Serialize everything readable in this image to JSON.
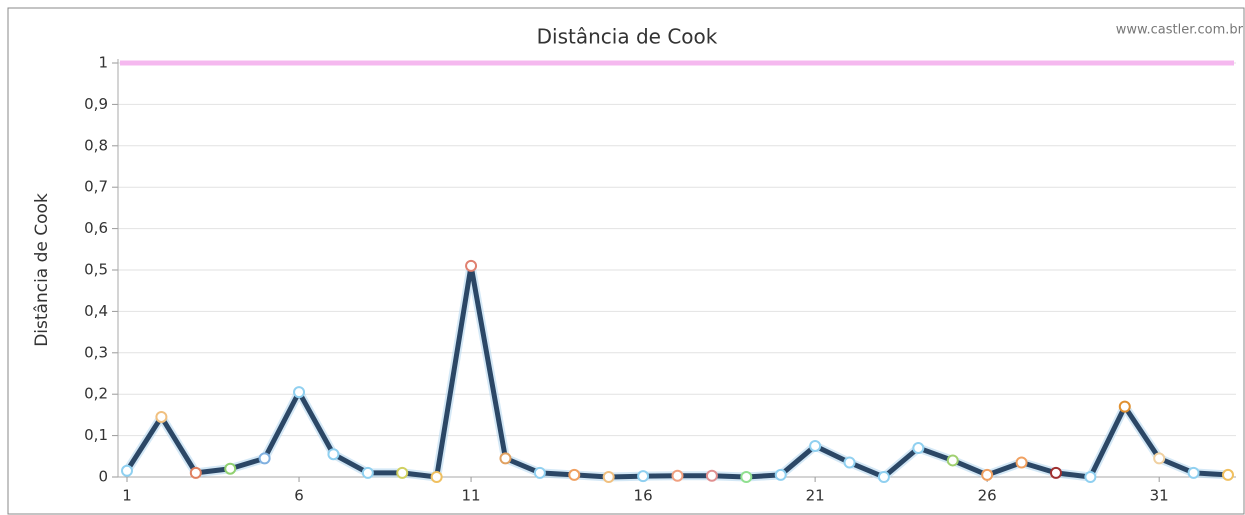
{
  "chart_data": {
    "type": "line",
    "title": "Distância de Cook",
    "watermark": "www.castler.com.br",
    "y_label": "Distância de Cook",
    "x": [
      1,
      2,
      3,
      4,
      5,
      6,
      7,
      8,
      9,
      10,
      11,
      12,
      13,
      14,
      15,
      16,
      17,
      18,
      19,
      20,
      21,
      22,
      23,
      24,
      25,
      26,
      27,
      28,
      29,
      30,
      31,
      32,
      33
    ],
    "series": [
      {
        "color": "#2b4766",
        "values": [
          0.015,
          0.145,
          0.01,
          0.02,
          0.045,
          0.205,
          0.055,
          0.01,
          0.01,
          0.0,
          0.51,
          0.045,
          0.01,
          0.005,
          0.0,
          0.002,
          0.003,
          0.003,
          0.0,
          0.005,
          0.075,
          0.035,
          0.0,
          0.07,
          0.04,
          0.005,
          0.035,
          0.01,
          0.0,
          0.17,
          0.045,
          0.01,
          0.005
        ]
      }
    ],
    "marker_colors": [
      "#8fd0f0",
      "#f0c080",
      "#e08060",
      "#90d070",
      "#80b0e0",
      "#90d0f0",
      "#90d0f0",
      "#90d0f0",
      "#d0d060",
      "#f0c060",
      "#e08070",
      "#e0a060",
      "#90d0f0",
      "#f0a060",
      "#f0c080",
      "#90d0f0",
      "#f0a080",
      "#e09090",
      "#90e090",
      "#90d0f0",
      "#90d0f0",
      "#90d0f0",
      "#90d0f0",
      "#90d0f0",
      "#a0d070",
      "#f0a060",
      "#f0a060",
      "#a03030",
      "#90d0f0",
      "#e09030",
      "#f0d0a0",
      "#90d0f0",
      "#f0c060"
    ],
    "reference_line": {
      "value": 1,
      "color": "#f5b8ef"
    },
    "xlim": [
      1,
      33
    ],
    "xticks": [
      1,
      6,
      11,
      16,
      21,
      26,
      31
    ],
    "ylim": [
      0,
      1
    ],
    "yticks": [
      0,
      {
        "value": 0.1,
        "label": "0,1"
      },
      {
        "value": 0.2,
        "label": "0,2"
      },
      {
        "value": 0.3,
        "label": "0,3"
      },
      {
        "value": 0.4,
        "label": "0,4"
      },
      {
        "value": 0.5,
        "label": "0,5"
      },
      {
        "value": 0.6,
        "label": "0,6"
      },
      {
        "value": 0.7,
        "label": "0,7"
      },
      {
        "value": 0.8,
        "label": "0,8"
      },
      {
        "value": 0.9,
        "label": "0,9"
      },
      1
    ],
    "grid": true
  }
}
